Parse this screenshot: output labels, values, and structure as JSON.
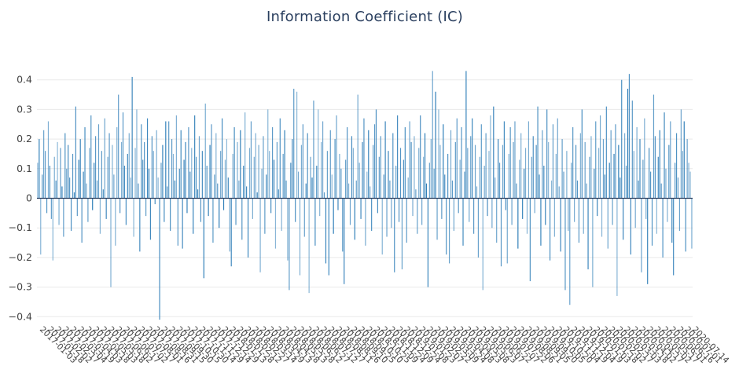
{
  "title": "Information Coefficient (IC)",
  "colors": {
    "bar": "#2f7eb8",
    "bar_light": "#9cc3e0",
    "zero_line": "#2a3f5f",
    "grid_line": "#e9e9e9",
    "tick_text": "#444444",
    "title_text": "#2a3f5f",
    "background": "#ffffff"
  },
  "chart_data": {
    "type": "bar",
    "title": "Information Coefficient (IC)",
    "xlabel": "",
    "ylabel": "",
    "legend": "none",
    "grid": "horizontal",
    "ylim": [
      -0.45,
      0.45
    ],
    "y_ticks": [
      0.4,
      0.3,
      0.2,
      0.1,
      0,
      -0.1,
      -0.2,
      -0.3,
      -0.4
    ],
    "x_first_tick": "2017-01-03",
    "x_last_tick": "2020-07-14",
    "x_tick_labels": [
      "2017-01-03",
      "2017-01-18",
      "2017-02-02",
      "2017-02-17",
      "2017-03-04",
      "2017-03-19",
      "2017-04-03",
      "2017-04-18",
      "2017-05-03",
      "2017-05-18",
      "2017-06-02",
      "2017-06-17",
      "2017-07-02",
      "2017-07-17",
      "2017-08-01",
      "2017-08-16",
      "2017-08-31",
      "2017-09-15",
      "2017-09-30",
      "2017-10-15",
      "2017-10-30",
      "2017-11-14",
      "2017-11-29",
      "2017-12-14",
      "2017-12-29",
      "2018-01-13",
      "2018-01-28",
      "2018-02-12",
      "2018-02-27",
      "2018-03-14",
      "2018-03-29",
      "2018-04-13",
      "2018-04-28",
      "2018-05-13",
      "2018-05-28",
      "2018-06-12",
      "2018-06-27",
      "2018-07-12",
      "2018-07-27",
      "2018-08-11",
      "2018-08-26",
      "2018-09-10",
      "2018-09-25",
      "2018-10-10",
      "2018-10-25",
      "2018-11-09",
      "2018-11-24",
      "2018-12-09",
      "2018-12-24",
      "2019-01-08",
      "2019-01-23",
      "2019-02-07",
      "2019-02-22",
      "2019-03-09",
      "2019-03-24",
      "2019-04-08",
      "2019-04-23",
      "2019-05-08",
      "2019-05-23",
      "2019-06-07",
      "2019-06-22",
      "2019-07-07",
      "2019-07-22",
      "2019-08-06",
      "2019-08-21",
      "2019-09-05",
      "2019-09-20",
      "2019-10-05",
      "2019-10-20",
      "2019-11-04",
      "2019-11-19",
      "2019-12-04",
      "2019-12-19",
      "2020-01-03",
      "2020-01-18",
      "2020-02-02",
      "2020-02-17",
      "2020-03-03",
      "2020-03-18",
      "2020-04-02",
      "2020-04-17",
      "2020-05-02",
      "2020-05-17",
      "2020-06-01",
      "2020-06-16",
      "2020-07-01",
      "2020-07-14"
    ],
    "values": [
      0.12,
      0.2,
      -0.19,
      0.08,
      0.23,
      0.16,
      -0.05,
      0.26,
      0.11,
      -0.07,
      -0.21,
      0.14,
      0.06,
      0.19,
      -0.09,
      0.17,
      0.04,
      -0.13,
      0.22,
      0.1,
      0.18,
      0.07,
      -0.11,
      0.15,
      0.02,
      0.31,
      -0.06,
      0.13,
      0.2,
      -0.15,
      0.09,
      0.24,
      0.05,
      -0.08,
      0.17,
      0.28,
      -0.04,
      0.12,
      0.21,
      0.06,
      0.25,
      -0.12,
      0.16,
      0.03,
      0.27,
      -0.07,
      0.14,
      0.22,
      -0.3,
      0.18,
      0.08,
      -0.16,
      0.24,
      0.35,
      -0.05,
      0.19,
      0.29,
      0.11,
      -0.09,
      0.15,
      0.22,
      0.07,
      0.41,
      -0.13,
      0.17,
      0.3,
      0.05,
      -0.18,
      0.25,
      0.13,
      0.19,
      -0.06,
      0.27,
      0.1,
      -0.14,
      0.21,
      0.16,
      -0.02,
      0.23,
      0.07,
      -0.41,
      0.12,
      0.18,
      -0.08,
      0.26,
      0.04,
      0.26,
      -0.11,
      0.2,
      0.15,
      0.06,
      0.28,
      -0.16,
      0.1,
      0.23,
      -0.17,
      0.13,
      0.19,
      -0.05,
      0.24,
      0.09,
      0.17,
      -0.12,
      0.28,
      0.14,
      0.03,
      0.21,
      -0.08,
      0.16,
      -0.27,
      0.32,
      0.11,
      -0.06,
      0.18,
      0.25,
      -0.15,
      0.08,
      0.22,
      0.05,
      -0.1,
      0.16,
      0.27,
      -0.04,
      0.13,
      0.2,
      0.07,
      -0.18,
      -0.23,
      0.15,
      0.24,
      -0.09,
      0.19,
      0.06,
      0.23,
      -0.14,
      0.11,
      0.29,
      0.04,
      -0.2,
      0.17,
      0.26,
      -0.07,
      0.14,
      0.22,
      0.02,
      0.18,
      -0.25,
      0.1,
      0.21,
      -0.12,
      0.08,
      0.3,
      0.16,
      -0.05,
      0.24,
      0.13,
      -0.17,
      0.19,
      0.03,
      0.27,
      -0.11,
      0.15,
      0.23,
      0.06,
      -0.21,
      -0.31,
      0.12,
      0.2,
      0.37,
      -0.08,
      0.36,
      0.09,
      -0.26,
      0.18,
      0.25,
      -0.13,
      0.05,
      0.22,
      -0.32,
      0.14,
      0.07,
      0.33,
      -0.16,
      0.11,
      0.3,
      -0.06,
      0.19,
      0.26,
      0.02,
      -0.22,
      0.16,
      -0.26,
      0.23,
      0.08,
      -0.12,
      0.2,
      0.28,
      -0.04,
      0.15,
      0.1,
      -0.18,
      -0.29,
      0.13,
      0.24,
      0.05,
      -0.09,
      0.21,
      0.17,
      -0.14,
      0.06,
      0.35,
      0.12,
      -0.07,
      0.19,
      0.27,
      -0.16,
      0.09,
      0.23,
      0.04,
      -0.11,
      0.18,
      0.25,
      0.3,
      -0.05,
      0.14,
      0.21,
      -0.19,
      0.08,
      0.26,
      -0.13,
      0.16,
      0.06,
      -0.1,
      0.22,
      -0.25,
      0.11,
      0.28,
      -0.08,
      0.17,
      -0.24,
      0.13,
      0.24,
      -0.15,
      0.07,
      0.26,
      0.19,
      -0.06,
      0.21,
      0.03,
      -0.12,
      0.17,
      0.28,
      -0.09,
      0.14,
      0.22,
      0.05,
      -0.3,
      0.12,
      0.2,
      0.43,
      0.1,
      0.36,
      -0.14,
      0.3,
      0.18,
      -0.07,
      0.25,
      0.08,
      -0.19,
      0.15,
      -0.22,
      0.23,
      0.06,
      -0.11,
      0.19,
      0.27,
      -0.05,
      0.13,
      0.24,
      -0.16,
      0.09,
      0.43,
      0.17,
      -0.08,
      0.21,
      0.27,
      -0.12,
      0.18,
      0.04,
      -0.2,
      0.14,
      0.25,
      -0.31,
      0.11,
      0.22,
      -0.06,
      0.16,
      0.28,
      -0.1,
      0.31,
      0.07,
      -0.15,
      0.2,
      0.12,
      -0.23,
      0.18,
      0.26,
      -0.04,
      -0.22,
      0.15,
      0.24,
      -0.09,
      0.19,
      0.26,
      0.05,
      -0.17,
      0.13,
      0.22,
      -0.07,
      0.1,
      0.17,
      -0.12,
      0.26,
      -0.28,
      0.14,
      0.21,
      -0.05,
      0.18,
      0.31,
      0.08,
      -0.16,
      0.23,
      0.11,
      -0.09,
      0.3,
      0.19,
      -0.21,
      0.06,
      0.25,
      -0.13,
      0.15,
      0.27,
      0.04,
      -0.18,
      0.2,
      0.09,
      -0.31,
      0.16,
      -0.11,
      -0.36,
      0.12,
      0.24,
      -0.08,
      0.18,
      0.06,
      -0.15,
      0.22,
      0.3,
      -0.12,
      0.19,
      0.05,
      -0.24,
      0.14,
      0.21,
      -0.3,
      0.1,
      0.26,
      -0.06,
      0.17,
      0.28,
      -0.13,
      0.2,
      0.08,
      0.31,
      -0.17,
      0.12,
      0.23,
      -0.09,
      0.15,
      0.25,
      -0.33,
      0.18,
      0.07,
      0.4,
      -0.14,
      0.22,
      0.11,
      0.37,
      0.42,
      -0.19,
      0.33,
      0.16,
      -0.1,
      0.24,
      0.06,
      0.2,
      -0.25,
      0.13,
      0.27,
      -0.07,
      -0.29,
      0.17,
      0.09,
      -0.16,
      0.35,
      0.21,
      -0.12,
      0.14,
      0.23,
      0.05,
      -0.2,
      0.29,
      0.1,
      -0.08,
      0.18,
      0.26,
      -0.15,
      -0.26,
      0.12,
      0.22,
      0.07,
      -0.11,
      0.3,
      0.16,
      0.26,
      -0.18,
      0.2,
      0.12,
      0.09,
      -0.17
    ]
  }
}
